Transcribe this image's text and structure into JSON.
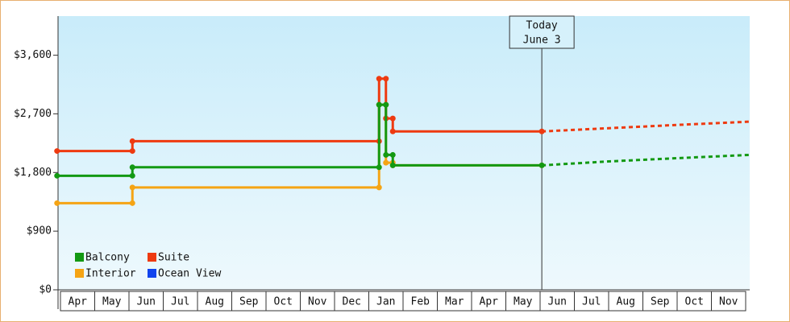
{
  "chart_data": {
    "type": "line",
    "xlim": [
      0,
      20
    ],
    "ylim": [
      0,
      4200
    ],
    "yticks": [
      {
        "value": 0,
        "label": "$0"
      },
      {
        "value": 900,
        "label": "$900"
      },
      {
        "value": 1800,
        "label": "$1,800"
      },
      {
        "value": 2700,
        "label": "$2,700"
      },
      {
        "value": 3600,
        "label": "$3,600"
      }
    ],
    "months": [
      "Apr",
      "May",
      "Jun",
      "Jul",
      "Aug",
      "Sep",
      "Oct",
      "Nov",
      "Dec",
      "Jan",
      "Feb",
      "Mar",
      "Apr",
      "May",
      "Jun",
      "Jul",
      "Aug",
      "Sep",
      "Oct",
      "Nov"
    ],
    "today": {
      "lines": [
        "Today",
        "June 3"
      ],
      "x": 14.05
    },
    "series": [
      {
        "name": "Interior",
        "color": "#f5a414",
        "x": [
          -0.1,
          2.1,
          2.1,
          9.3,
          9.3,
          9.5,
          9.5,
          9.7,
          9.7,
          14.05
        ],
        "values": [
          1330,
          1330,
          1570,
          1570,
          2840,
          2840,
          1950,
          1950,
          1910,
          1910
        ],
        "projection": {
          "x": [],
          "values": []
        }
      },
      {
        "name": "Suite",
        "color": "#ee3a10",
        "x": [
          -0.1,
          2.1,
          2.1,
          9.3,
          9.3,
          9.5,
          9.5,
          9.7,
          9.7,
          14.05
        ],
        "values": [
          2130,
          2130,
          2280,
          2280,
          3240,
          3240,
          2630,
          2630,
          2430,
          2430
        ],
        "projection": {
          "x": [
            14.05,
            16,
            18,
            20.1
          ],
          "values": [
            2430,
            2480,
            2530,
            2580
          ]
        }
      },
      {
        "name": "Balcony",
        "color": "#139913",
        "x": [
          -0.1,
          2.1,
          2.1,
          9.3,
          9.3,
          9.5,
          9.5,
          9.7,
          9.7,
          14.05
        ],
        "values": [
          1750,
          1750,
          1880,
          1880,
          2840,
          2840,
          2070,
          2070,
          1910,
          1910
        ],
        "projection": {
          "x": [
            14.05,
            16,
            18,
            20.1
          ],
          "values": [
            1910,
            1970,
            2020,
            2070
          ]
        }
      },
      {
        "name": "Ocean View",
        "color": "#1144ee",
        "x": [],
        "values": [],
        "projection": {
          "x": [],
          "values": []
        }
      }
    ]
  }
}
